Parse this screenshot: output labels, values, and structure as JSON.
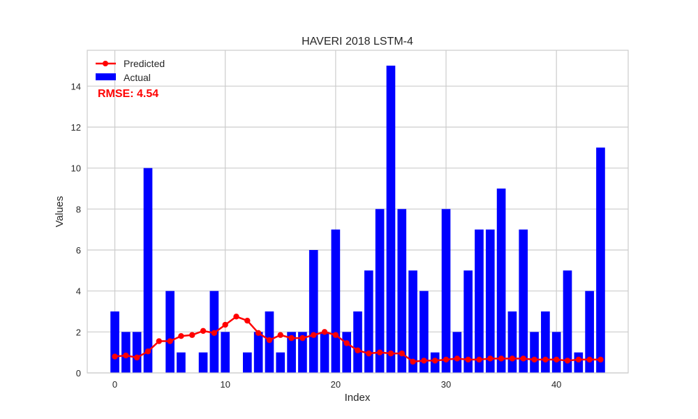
{
  "chart_data": {
    "type": "bar",
    "title": "HAVERI 2018 LSTM-4",
    "xlabel": "Index",
    "ylabel": "Values",
    "xlim": [
      -2.5,
      46.5
    ],
    "ylim": [
      0,
      15.75
    ],
    "xticks": [
      0,
      10,
      20,
      30,
      40
    ],
    "yticks": [
      0,
      2,
      4,
      6,
      8,
      10,
      12,
      14
    ],
    "grid": true,
    "legend_position": "top-left",
    "annotation": "RMSE: 4.54",
    "x": [
      0,
      1,
      2,
      3,
      4,
      5,
      6,
      7,
      8,
      9,
      10,
      11,
      12,
      13,
      14,
      15,
      16,
      17,
      18,
      19,
      20,
      21,
      22,
      23,
      24,
      25,
      26,
      27,
      28,
      29,
      30,
      31,
      32,
      33,
      34,
      35,
      36,
      37,
      38,
      39,
      40,
      41,
      42,
      43,
      44
    ],
    "series": [
      {
        "name": "Actual",
        "type": "bar",
        "color": "#0000ff",
        "values": [
          3,
          2,
          2,
          10,
          0,
          4,
          1,
          0,
          1,
          4,
          2,
          0,
          1,
          2,
          3,
          1,
          2,
          2,
          6,
          2,
          7,
          2,
          3,
          5,
          8,
          15,
          8,
          5,
          4,
          1,
          8,
          2,
          5,
          7,
          7,
          9,
          3,
          7,
          2,
          3,
          2,
          5,
          1,
          4,
          11
        ]
      },
      {
        "name": "Predicted",
        "type": "line",
        "color": "#ff0000",
        "values": [
          0.8,
          0.85,
          0.75,
          1.05,
          1.55,
          1.55,
          1.8,
          1.85,
          2.05,
          1.95,
          2.35,
          2.75,
          2.55,
          1.95,
          1.6,
          1.85,
          1.7,
          1.7,
          1.85,
          2.0,
          1.85,
          1.45,
          1.1,
          0.95,
          1.0,
          0.95,
          0.95,
          0.55,
          0.6,
          0.6,
          0.65,
          0.7,
          0.65,
          0.65,
          0.7,
          0.7,
          0.7,
          0.7,
          0.65,
          0.65,
          0.65,
          0.6,
          0.65,
          0.65,
          0.65
        ]
      }
    ]
  }
}
